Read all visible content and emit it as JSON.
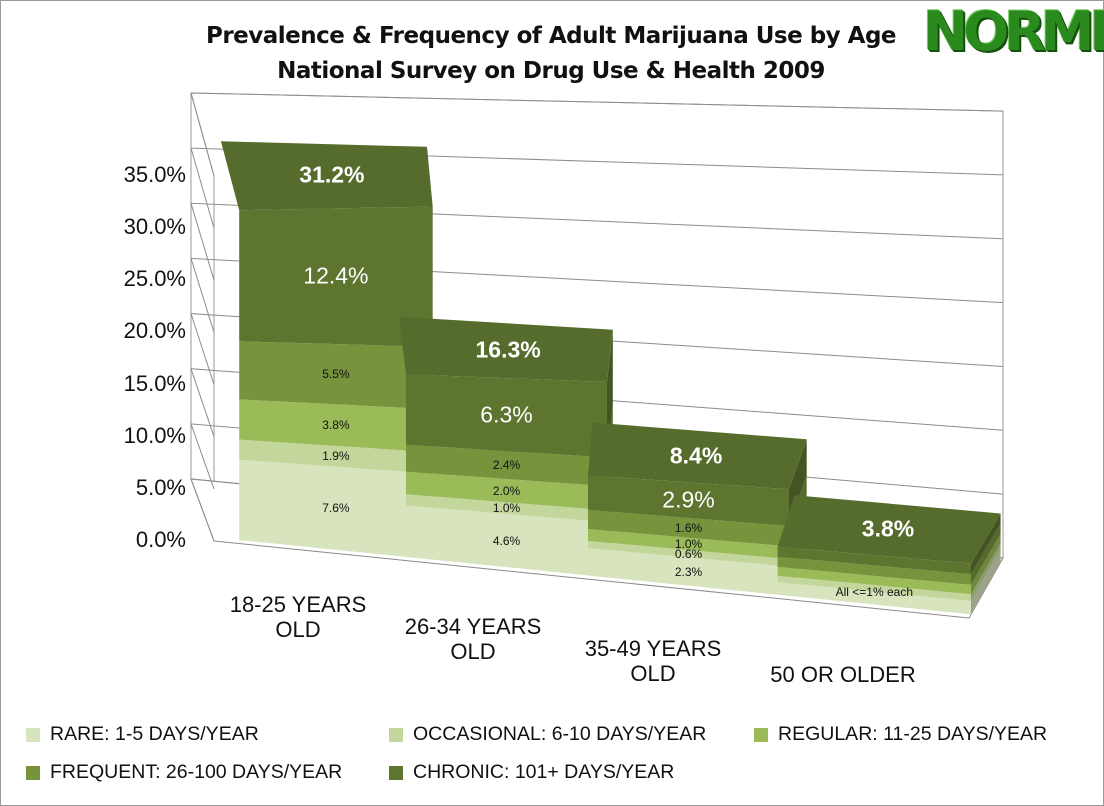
{
  "title_line1": "Prevalence & Frequency of Adult Marijuana Use by Age",
  "title_line2": "National Survey on Drug Use & Health 2009",
  "logo_text": "NORML",
  "colors": {
    "rare": "#d7e4bd",
    "occasional": "#c3d69b",
    "regular": "#9bbb59",
    "frequent": "#77933c",
    "chronic": "#5e7530"
  },
  "chart_data": {
    "type": "bar",
    "stacked": true,
    "three_d": true,
    "categories": [
      "18-25 YEARS OLD",
      "26-34 YEARS OLD",
      "35-49 YEARS OLD",
      "50 OR OLDER"
    ],
    "series": [
      {
        "name": "RARE: 1-5 DAYS/YEAR",
        "values": [
          7.6,
          4.6,
          2.3,
          1.0
        ]
      },
      {
        "name": "OCCASIONAL: 6-10 DAYS/YEAR",
        "values": [
          1.9,
          1.0,
          0.6,
          0.5
        ]
      },
      {
        "name": "REGULAR: 11-25 DAYS/YEAR",
        "values": [
          3.8,
          2.0,
          1.0,
          0.7
        ]
      },
      {
        "name": "FREQUENT: 26-100 DAYS/YEAR",
        "values": [
          5.5,
          2.4,
          1.6,
          0.8
        ]
      },
      {
        "name": "CHRONIC: 101+ DAYS/YEAR",
        "values": [
          12.4,
          6.3,
          2.9,
          0.8
        ]
      }
    ],
    "segment_labels": [
      [
        "7.6%",
        "1.9%",
        "3.8%",
        "5.5%",
        "12.4%"
      ],
      [
        "4.6%",
        "1.0%",
        "2.0%",
        "2.4%",
        "6.3%"
      ],
      [
        "2.3%",
        "0.6%",
        "1.0%",
        "1.6%",
        "2.9%"
      ],
      [
        "",
        "",
        "",
        "",
        ""
      ]
    ],
    "totals": [
      "31.2%",
      "16.3%",
      "8.4%",
      "3.8%"
    ],
    "annotation": "All <=1% each",
    "yticks": [
      "0.0%",
      "5.0%",
      "10.0%",
      "15.0%",
      "20.0%",
      "25.0%",
      "30.0%",
      "35.0%"
    ],
    "ylim": [
      0,
      35
    ],
    "grid": true,
    "legend_position": "bottom"
  }
}
